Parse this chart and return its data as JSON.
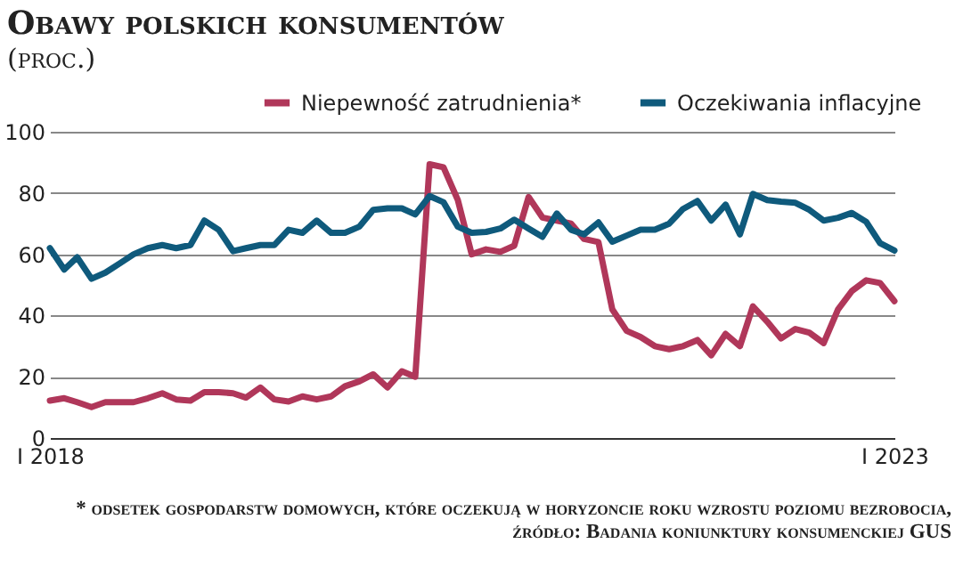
{
  "chart_data": {
    "type": "line",
    "title": "Obawy polskich konsumentów",
    "subtitle": "(proc.)",
    "x": [
      "2018-01",
      "2018-02",
      "2018-03",
      "2018-04",
      "2018-05",
      "2018-06",
      "2018-07",
      "2018-08",
      "2018-09",
      "2018-10",
      "2018-11",
      "2018-12",
      "2019-01",
      "2019-02",
      "2019-03",
      "2019-04",
      "2019-05",
      "2019-06",
      "2019-07",
      "2019-08",
      "2019-09",
      "2019-10",
      "2019-11",
      "2019-12",
      "2020-01",
      "2020-02",
      "2020-03",
      "2020-04",
      "2020-05",
      "2020-06",
      "2020-07",
      "2020-08",
      "2020-09",
      "2020-10",
      "2020-11",
      "2020-12",
      "2021-01",
      "2021-02",
      "2021-03",
      "2021-04",
      "2021-05",
      "2021-06",
      "2021-07",
      "2021-08",
      "2021-09",
      "2021-10",
      "2021-11",
      "2021-12",
      "2022-01",
      "2022-02",
      "2022-03",
      "2022-04",
      "2022-05",
      "2022-06",
      "2022-07",
      "2022-08",
      "2022-09",
      "2022-10",
      "2022-11",
      "2022-12",
      "2023-01"
    ],
    "series": [
      {
        "name": "Niepewność zatrudnienia*",
        "color": "#b0375a",
        "values": [
          12.2,
          13,
          11.7,
          10.1,
          11.7,
          11.7,
          11.7,
          13,
          14.6,
          12.6,
          12.2,
          15,
          15,
          14.6,
          13.2,
          16.5,
          12.6,
          11.9,
          13.6,
          12.6,
          13.6,
          16.9,
          18.5,
          20.8,
          16.5,
          21.8,
          20,
          89.4,
          88.4,
          77.7,
          60,
          61.6,
          60.8,
          62.8,
          78.7,
          72,
          71,
          70,
          65,
          64,
          42,
          35,
          33,
          30,
          29,
          30,
          32,
          27,
          34,
          30,
          43,
          38,
          32.5,
          35.6,
          34.4,
          31,
          42,
          48,
          51.5,
          50.6,
          44.7
        ]
      },
      {
        "name": "Oczekiwania inflacyjne",
        "color": "#0f5a7c",
        "values": [
          62,
          55,
          59,
          52,
          54,
          57,
          60,
          62,
          63,
          62,
          63,
          71,
          68,
          61,
          62,
          63,
          63,
          68,
          67,
          71,
          67,
          67,
          69,
          74.5,
          75,
          75,
          73,
          79,
          77,
          69,
          67,
          67.3,
          68.4,
          71.3,
          68.4,
          65.7,
          73.3,
          68,
          66.5,
          70.4,
          64.1,
          66.1,
          68,
          68,
          70,
          74.8,
          77.4,
          71,
          76.2,
          66.5,
          79.7,
          77.7,
          77.2,
          76.8,
          74.5,
          71,
          71.9,
          73.5,
          70.6,
          63.6,
          61.2
        ]
      }
    ],
    "xlim": [
      "2018-01",
      "2023-01"
    ],
    "xticks": [
      {
        "value": "2018-01",
        "label": "I 2018"
      },
      {
        "value": "2023-01",
        "label": "I 2023"
      }
    ],
    "ylim": [
      0,
      100
    ],
    "yticks": [
      0,
      20,
      40,
      60,
      80,
      100
    ],
    "grid": "y",
    "legend": "top right",
    "annotations": [
      "* odsetek gospodarstw domowych, które oczekują w horyzoncie roku wzrostu poziomu bezrobocia, źródło: Badania koniunktury konsumenckiej GUS"
    ]
  }
}
